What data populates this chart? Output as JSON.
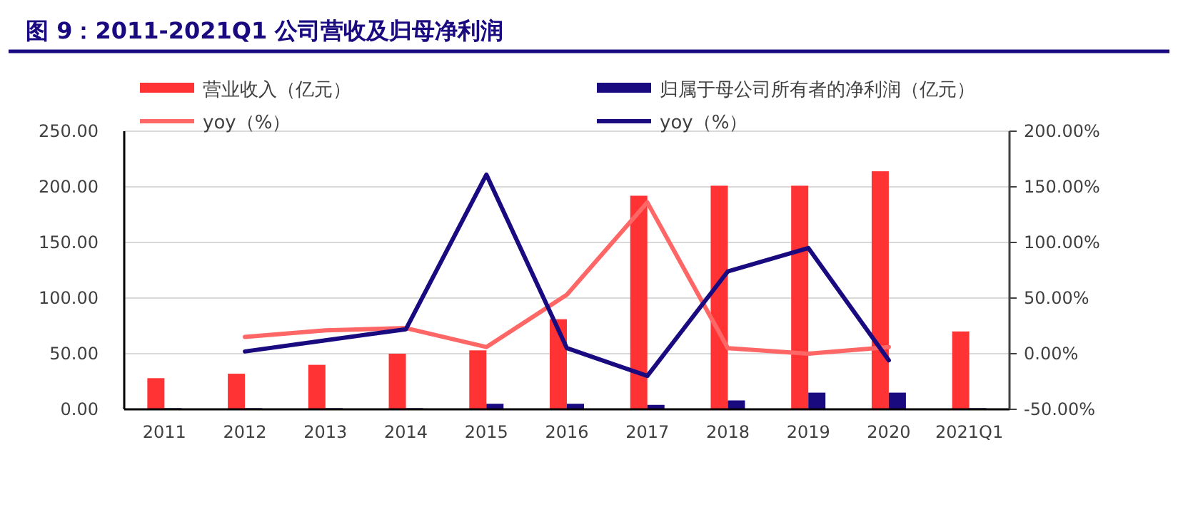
{
  "chart_data": {
    "type": "bar",
    "title": "图 9：2011-2021Q1 公司营收及归母净利润",
    "categories": [
      "2011",
      "2012",
      "2013",
      "2014",
      "2015",
      "2016",
      "2017",
      "2018",
      "2019",
      "2020",
      "2021Q1"
    ],
    "series": [
      {
        "name": "营业收入（亿元）",
        "color": "#ff3333",
        "values": [
          28,
          32,
          40,
          50,
          53,
          81,
          192,
          201,
          201,
          214,
          70
        ]
      },
      {
        "name": "归属于母公司所有者的净利润（亿元）",
        "color": "#1a0a80",
        "values": [
          1,
          1,
          1,
          1,
          5,
          5,
          4,
          8,
          15,
          15,
          1
        ]
      },
      {
        "name": "yoy（%）",
        "type": "line",
        "axis": "y2",
        "color": "#ff6666",
        "values": [
          null,
          15,
          21,
          23,
          6,
          53,
          136,
          5,
          0,
          6,
          null
        ]
      },
      {
        "name": "yoy（%）",
        "type": "line",
        "axis": "y2",
        "color": "#1a0a80",
        "values": [
          null,
          2,
          12,
          22,
          161,
          5,
          -20,
          74,
          95,
          -6,
          null
        ]
      }
    ],
    "ylim": [
      0,
      250
    ],
    "yticks": [
      {
        "value": 0,
        "label": "0.00"
      },
      {
        "value": 50,
        "label": "50.00"
      },
      {
        "value": 100,
        "label": "100.00"
      },
      {
        "value": 150,
        "label": "150.00"
      },
      {
        "value": 200,
        "label": "200.00"
      },
      {
        "value": 250,
        "label": "250.00"
      }
    ],
    "y2lim": [
      -50,
      200
    ],
    "y2ticks": [
      {
        "value": -50,
        "label": "-50.00%"
      },
      {
        "value": 0,
        "label": "0.00%"
      },
      {
        "value": 50,
        "label": "50.00%"
      },
      {
        "value": 100,
        "label": "100.00%"
      },
      {
        "value": 150,
        "label": "150.00%"
      },
      {
        "value": 200,
        "label": "200.00%"
      }
    ],
    "grid": "y",
    "legend": "top"
  }
}
